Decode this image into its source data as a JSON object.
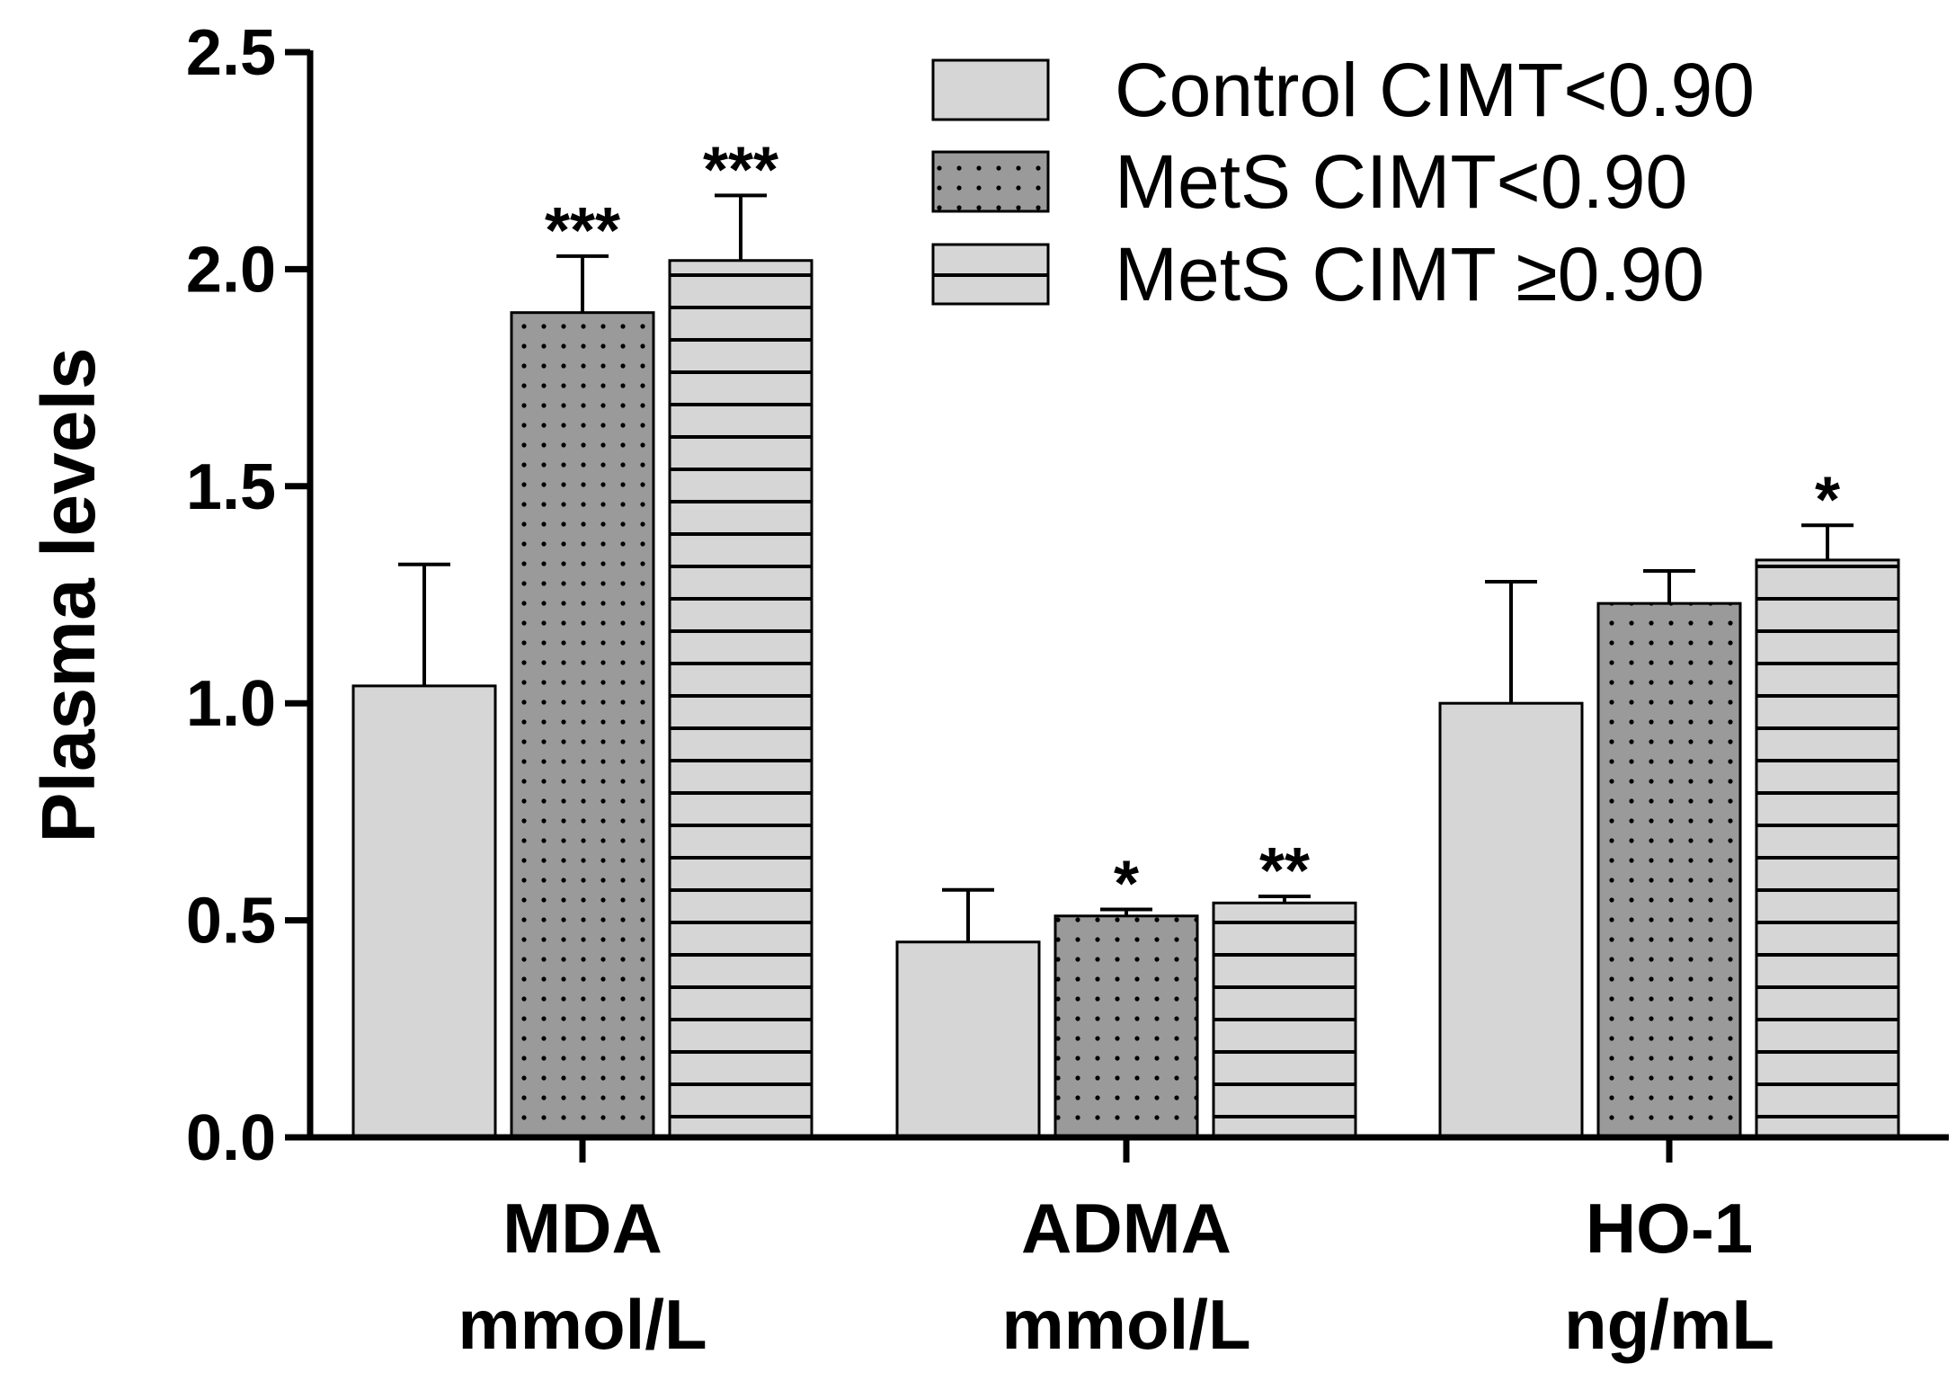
{
  "chart_data": {
    "type": "bar",
    "title": "",
    "xlabel": "",
    "ylabel": "Plasma levels",
    "ylim": [
      0,
      2.5
    ],
    "yticks": [
      "0.0",
      "0.5",
      "1.0",
      "1.5",
      "2.0",
      "2.5"
    ],
    "categories": [
      {
        "name": "MDA",
        "unit": "mmol/L"
      },
      {
        "name": "ADMA",
        "unit": "mmol/L"
      },
      {
        "name": "HO-1",
        "unit": "ng/mL"
      }
    ],
    "series": [
      {
        "name": "Control CIMT<0.90",
        "pattern": "solid",
        "color": "#d6d6d6",
        "values": [
          1.04,
          0.45,
          1.0
        ],
        "errors": [
          0.28,
          0.12,
          0.28
        ],
        "sig": [
          "",
          "",
          ""
        ]
      },
      {
        "name": "MetS CIMT<0.90",
        "pattern": "dots",
        "color": "#9a9a9a",
        "values": [
          1.9,
          0.51,
          1.23
        ],
        "errors": [
          0.13,
          0.015,
          0.075
        ],
        "sig": [
          "***",
          "*",
          ""
        ]
      },
      {
        "name": "MetS CIMT ≥0.90",
        "pattern": "lines",
        "color": "#d6d6d6",
        "values": [
          2.02,
          0.54,
          1.33
        ],
        "errors": [
          0.15,
          0.015,
          0.08
        ],
        "sig": [
          "***",
          "**",
          "*"
        ]
      }
    ],
    "legend_position": "top-right",
    "grid": false
  }
}
